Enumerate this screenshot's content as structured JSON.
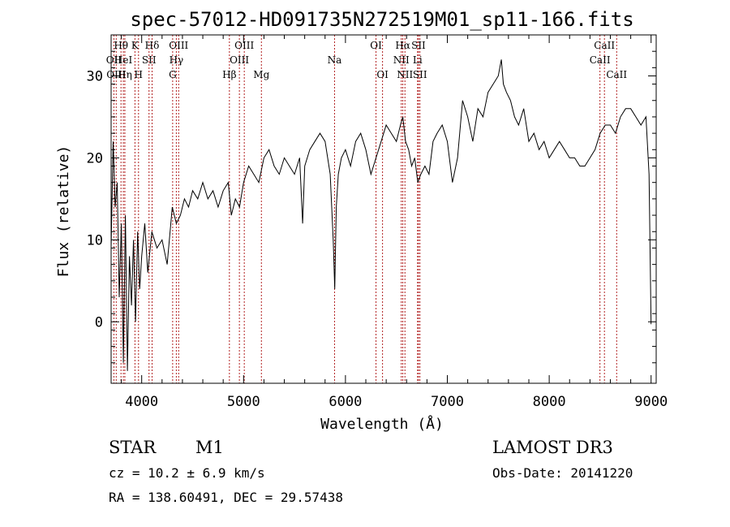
{
  "chart_data": {
    "type": "line",
    "title": "spec-57012-HD091735N272519M01_sp11-166.fits",
    "xlabel": "Wavelength (Å)",
    "ylabel": "Flux (relative)",
    "xlim": [
      3700,
      9050
    ],
    "ylim": [
      -7.5,
      35
    ],
    "xticks": [
      4000,
      5000,
      6000,
      7000,
      8000,
      9000
    ],
    "yticks": [
      0,
      10,
      20,
      30
    ],
    "series": [
      {
        "name": "spectrum",
        "x": [
          3700,
          3720,
          3740,
          3760,
          3780,
          3800,
          3820,
          3840,
          3860,
          3880,
          3900,
          3920,
          3940,
          3960,
          3980,
          4000,
          4030,
          4060,
          4100,
          4150,
          4200,
          4250,
          4300,
          4340,
          4380,
          4420,
          4460,
          4500,
          4550,
          4600,
          4650,
          4700,
          4750,
          4800,
          4850,
          4880,
          4920,
          4960,
          5000,
          5050,
          5100,
          5150,
          5200,
          5250,
          5300,
          5350,
          5400,
          5450,
          5500,
          5550,
          5580,
          5600,
          5650,
          5700,
          5750,
          5800,
          5850,
          5880,
          5895,
          5910,
          5930,
          5960,
          6000,
          6050,
          6100,
          6150,
          6200,
          6250,
          6300,
          6350,
          6400,
          6450,
          6500,
          6540,
          6563,
          6590,
          6620,
          6650,
          6680,
          6710,
          6740,
          6780,
          6820,
          6860,
          6900,
          6950,
          7000,
          7050,
          7100,
          7150,
          7200,
          7250,
          7300,
          7350,
          7400,
          7450,
          7500,
          7530,
          7550,
          7580,
          7620,
          7660,
          7700,
          7750,
          7800,
          7850,
          7900,
          7950,
          8000,
          8050,
          8100,
          8150,
          8200,
          8250,
          8300,
          8350,
          8400,
          8450,
          8500,
          8550,
          8600,
          8650,
          8700,
          8750,
          8800,
          8850,
          8900,
          8950,
          8980,
          9000
        ],
        "y": [
          9,
          22,
          14,
          17,
          3,
          12,
          -5,
          13,
          -6,
          8,
          2,
          10,
          0,
          11,
          4,
          8,
          12,
          6,
          11,
          9,
          10,
          7,
          14,
          12,
          13,
          15,
          14,
          16,
          15,
          17,
          15,
          16,
          14,
          16,
          17,
          13,
          15,
          14,
          17,
          19,
          18,
          17,
          20,
          21,
          19,
          18,
          20,
          19,
          18,
          20,
          12,
          19,
          21,
          22,
          23,
          22,
          18,
          10,
          4,
          14,
          18,
          20,
          21,
          19,
          22,
          23,
          21,
          18,
          20,
          22,
          24,
          23,
          22,
          24,
          25,
          22,
          21,
          19,
          20,
          17,
          18,
          19,
          18,
          22,
          23,
          24,
          22,
          17,
          20,
          27,
          25,
          22,
          26,
          25,
          28,
          29,
          30,
          32,
          29,
          28,
          27,
          25,
          24,
          26,
          22,
          23,
          21,
          22,
          20,
          21,
          22,
          21,
          20,
          20,
          19,
          19,
          20,
          21,
          23,
          24,
          24,
          23,
          25,
          26,
          26,
          25,
          24,
          25,
          18,
          -0.3
        ]
      }
    ],
    "lines": [
      {
        "label": "Hθ",
        "x": 3797,
        "row": 0
      },
      {
        "label": "OII",
        "x": 3727,
        "row": 1
      },
      {
        "label": "HeI",
        "x": 3820,
        "row": 1
      },
      {
        "label": "OIII",
        "x": 3750,
        "row": 2
      },
      {
        "label": "Hη",
        "x": 3835,
        "row": 2
      },
      {
        "label": "K",
        "x": 3934,
        "row": 0
      },
      {
        "label": "SII",
        "x": 4072,
        "row": 1
      },
      {
        "label": "H",
        "x": 3969,
        "row": 2
      },
      {
        "label": "Hδ",
        "x": 4102,
        "row": 0
      },
      {
        "label": "OIII",
        "x": 4363,
        "row": 0
      },
      {
        "label": "Hγ",
        "x": 4340,
        "row": 1
      },
      {
        "label": "G",
        "x": 4304,
        "row": 2
      },
      {
        "label": "Hβ",
        "x": 4861,
        "row": 2
      },
      {
        "label": "OIII",
        "x": 5007,
        "row": 0
      },
      {
        "label": "OIII",
        "x": 4959,
        "row": 1
      },
      {
        "label": "Mg",
        "x": 5175,
        "row": 2
      },
      {
        "label": "Na",
        "x": 5893,
        "row": 1
      },
      {
        "label": "OI",
        "x": 6300,
        "row": 0
      },
      {
        "label": "OI",
        "x": 6364,
        "row": 2
      },
      {
        "label": "Hα",
        "x": 6563,
        "row": 0
      },
      {
        "label": "NII",
        "x": 6548,
        "row": 1
      },
      {
        "label": "NII",
        "x": 6584,
        "row": 2
      },
      {
        "label": "SII",
        "x": 6717,
        "row": 0
      },
      {
        "label": "Li",
        "x": 6708,
        "row": 1
      },
      {
        "label": "SII",
        "x": 6731,
        "row": 2
      },
      {
        "label": "CaII",
        "x": 8542,
        "row": 0
      },
      {
        "label": "CaII",
        "x": 8498,
        "row": 1
      },
      {
        "label": "CaII",
        "x": 8662,
        "row": 2
      }
    ]
  },
  "info": {
    "object_class": "STAR",
    "subclass": "M1",
    "redshift": "cz = 10.2 ± 6.9 km/s",
    "coords": "RA = 138.60491, DEC =  29.57438",
    "survey": "LAMOST DR3",
    "obs_date": "Obs-Date: 20141220"
  },
  "colors": {
    "line_marker": "#b22222",
    "spectrum": "#000000",
    "axes": "#000000"
  }
}
